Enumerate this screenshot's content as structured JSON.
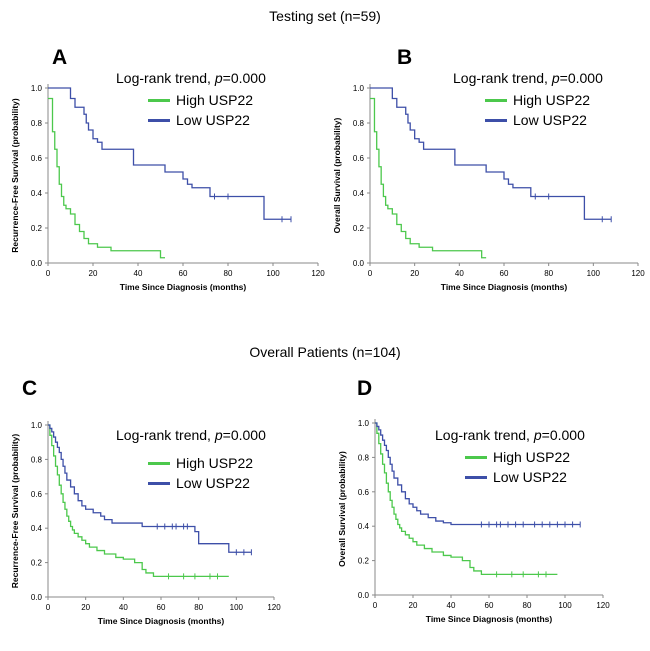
{
  "headers": {
    "testing": "Testing set (n=59)",
    "overall": "Overall Patients (n=104)"
  },
  "colors": {
    "high": "#4CC84C",
    "low": "#3D4FA8",
    "axis": "#888888"
  },
  "chart_data": [
    {
      "type": "line",
      "panel": "A",
      "legend_title": "Log-rank trend, ",
      "p_label": "p",
      "p_value": "=0.000",
      "xlabel": "Time Since Diagnosis (months)",
      "ylabel": "Recurrence-Free Survival (probability)",
      "xlim": [
        0,
        120
      ],
      "ylim": [
        0,
        1.0
      ],
      "xticks": [
        "0",
        "20",
        "40",
        "60",
        "80",
        "100",
        "120"
      ],
      "yticks": [
        "0.0",
        "0.2",
        "0.4",
        "0.6",
        "0.8",
        "1.0"
      ],
      "series": [
        {
          "name": "High USP22",
          "color_key": "high",
          "x": [
            0,
            2,
            3,
            4,
            5,
            6,
            7,
            8,
            10,
            12,
            14,
            16,
            18,
            22,
            28,
            36,
            46,
            50,
            52
          ],
          "y": [
            0.94,
            0.75,
            0.65,
            0.55,
            0.45,
            0.38,
            0.33,
            0.31,
            0.28,
            0.22,
            0.18,
            0.14,
            0.11,
            0.09,
            0.07,
            0.07,
            0.07,
            0.03,
            0.03
          ],
          "censored": []
        },
        {
          "name": "Low USP22",
          "color_key": "low",
          "x": [
            0,
            8,
            10,
            12,
            14,
            16,
            17,
            18,
            20,
            22,
            24,
            28,
            36,
            38,
            52,
            60,
            62,
            64,
            66,
            72,
            82,
            96,
            100,
            108
          ],
          "y": [
            1.0,
            1.0,
            0.94,
            0.89,
            0.89,
            0.85,
            0.8,
            0.76,
            0.71,
            0.69,
            0.65,
            0.65,
            0.65,
            0.56,
            0.52,
            0.48,
            0.45,
            0.43,
            0.43,
            0.38,
            0.38,
            0.25,
            0.25,
            0.25
          ],
          "censored": [
            [
              74,
              0.38
            ],
            [
              80,
              0.38
            ],
            [
              104,
              0.25
            ],
            [
              108,
              0.25
            ]
          ]
        }
      ]
    },
    {
      "type": "line",
      "panel": "B",
      "legend_title": "Log-rank trend, ",
      "p_label": "p",
      "p_value": "=0.000",
      "xlabel": "Time Since Diagnosis (months)",
      "ylabel": "Overall Survival (probability)",
      "xlim": [
        0,
        120
      ],
      "ylim": [
        0,
        1.0
      ],
      "xticks": [
        "0",
        "20",
        "40",
        "60",
        "80",
        "100",
        "120"
      ],
      "yticks": [
        "0.0",
        "0.2",
        "0.4",
        "0.6",
        "0.8",
        "1.0"
      ],
      "series": [
        {
          "name": "High USP22",
          "color_key": "high",
          "x": [
            0,
            2,
            3,
            4,
            5,
            6,
            7,
            8,
            10,
            12,
            14,
            16,
            18,
            22,
            28,
            36,
            46,
            50,
            52
          ],
          "y": [
            0.94,
            0.75,
            0.65,
            0.55,
            0.45,
            0.38,
            0.33,
            0.31,
            0.28,
            0.22,
            0.18,
            0.14,
            0.11,
            0.09,
            0.07,
            0.07,
            0.07,
            0.03,
            0.03
          ],
          "censored": []
        },
        {
          "name": "Low USP22",
          "color_key": "low",
          "x": [
            0,
            8,
            10,
            12,
            14,
            16,
            17,
            18,
            20,
            22,
            24,
            28,
            36,
            38,
            52,
            60,
            62,
            64,
            66,
            72,
            82,
            96,
            100,
            108
          ],
          "y": [
            1.0,
            1.0,
            0.94,
            0.89,
            0.89,
            0.85,
            0.8,
            0.76,
            0.71,
            0.69,
            0.65,
            0.65,
            0.65,
            0.56,
            0.52,
            0.48,
            0.45,
            0.43,
            0.43,
            0.38,
            0.38,
            0.25,
            0.25,
            0.25
          ],
          "censored": [
            [
              74,
              0.38
            ],
            [
              80,
              0.38
            ],
            [
              104,
              0.25
            ],
            [
              108,
              0.25
            ]
          ]
        }
      ]
    },
    {
      "type": "line",
      "panel": "C",
      "legend_title": "Log-rank trend, ",
      "p_label": "p",
      "p_value": "=0.000",
      "xlabel": "Time Since Diagnosis (months)",
      "ylabel": "Recurrence-Free Survival (probability)",
      "xlim": [
        0,
        120
      ],
      "ylim": [
        0,
        1.0
      ],
      "xticks": [
        "0",
        "20",
        "40",
        "60",
        "80",
        "100",
        "120"
      ],
      "yticks": [
        "0.0",
        "0.2",
        "0.4",
        "0.6",
        "0.8",
        "1.0"
      ],
      "series": [
        {
          "name": "High USP22",
          "color_key": "high",
          "x": [
            0,
            1,
            2,
            3,
            4,
            5,
            6,
            7,
            8,
            9,
            10,
            11,
            12,
            13,
            14,
            16,
            18,
            20,
            22,
            26,
            30,
            36,
            40,
            46,
            50,
            52,
            56,
            60,
            70,
            80,
            90,
            96
          ],
          "y": [
            1.0,
            0.94,
            0.88,
            0.82,
            0.76,
            0.71,
            0.65,
            0.6,
            0.55,
            0.51,
            0.47,
            0.44,
            0.41,
            0.39,
            0.37,
            0.35,
            0.33,
            0.31,
            0.29,
            0.27,
            0.25,
            0.23,
            0.22,
            0.2,
            0.16,
            0.14,
            0.12,
            0.12,
            0.12,
            0.12,
            0.12,
            0.12
          ],
          "censored": [
            [
              64,
              0.12
            ],
            [
              72,
              0.12
            ],
            [
              78,
              0.12
            ],
            [
              86,
              0.12
            ],
            [
              90,
              0.12
            ]
          ]
        },
        {
          "name": "Low USP22",
          "color_key": "low",
          "x": [
            0,
            1,
            2,
            3,
            4,
            5,
            6,
            7,
            8,
            9,
            10,
            12,
            14,
            16,
            18,
            20,
            24,
            28,
            30,
            34,
            40,
            50,
            56,
            64,
            70,
            76,
            78,
            80,
            84,
            90,
            96,
            100,
            108
          ],
          "y": [
            1.0,
            0.98,
            0.96,
            0.93,
            0.9,
            0.87,
            0.84,
            0.8,
            0.76,
            0.72,
            0.68,
            0.64,
            0.6,
            0.56,
            0.53,
            0.51,
            0.49,
            0.47,
            0.45,
            0.43,
            0.43,
            0.41,
            0.41,
            0.41,
            0.41,
            0.41,
            0.38,
            0.31,
            0.31,
            0.31,
            0.26,
            0.26,
            0.26
          ],
          "censored": [
            [
              58,
              0.41
            ],
            [
              62,
              0.41
            ],
            [
              66,
              0.41
            ],
            [
              68,
              0.41
            ],
            [
              72,
              0.41
            ],
            [
              74,
              0.41
            ],
            [
              100,
              0.26
            ],
            [
              104,
              0.26
            ],
            [
              108,
              0.26
            ]
          ]
        }
      ]
    },
    {
      "type": "line",
      "panel": "D",
      "legend_title": "Log-rank trend, ",
      "p_label": "p",
      "p_value": "=0.000",
      "xlabel": "Time Since Diagnosis (months)",
      "ylabel": "Overall Survival (probability)",
      "xlim": [
        0,
        120
      ],
      "ylim": [
        0,
        1.0
      ],
      "xticks": [
        "0",
        "20",
        "40",
        "60",
        "80",
        "100",
        "120"
      ],
      "yticks": [
        "0.0",
        "0.2",
        "0.4",
        "0.6",
        "0.8",
        "1.0"
      ],
      "series": [
        {
          "name": "High USP22",
          "color_key": "high",
          "x": [
            0,
            1,
            2,
            3,
            4,
            5,
            6,
            7,
            8,
            9,
            10,
            11,
            12,
            13,
            14,
            16,
            18,
            20,
            22,
            26,
            30,
            36,
            40,
            46,
            50,
            52,
            56,
            60,
            70,
            80,
            90,
            96
          ],
          "y": [
            1.0,
            0.94,
            0.88,
            0.82,
            0.76,
            0.71,
            0.65,
            0.6,
            0.55,
            0.51,
            0.47,
            0.44,
            0.41,
            0.39,
            0.37,
            0.35,
            0.33,
            0.31,
            0.29,
            0.27,
            0.25,
            0.23,
            0.22,
            0.2,
            0.16,
            0.14,
            0.12,
            0.12,
            0.12,
            0.12,
            0.12,
            0.12
          ],
          "censored": [
            [
              64,
              0.12
            ],
            [
              72,
              0.12
            ],
            [
              78,
              0.12
            ],
            [
              86,
              0.12
            ],
            [
              90,
              0.12
            ]
          ]
        },
        {
          "name": "Low USP22",
          "color_key": "low",
          "x": [
            0,
            1,
            2,
            3,
            4,
            5,
            6,
            7,
            8,
            9,
            10,
            12,
            14,
            16,
            18,
            20,
            22,
            24,
            28,
            32,
            36,
            40,
            50,
            60,
            70,
            80,
            90,
            100,
            108
          ],
          "y": [
            1.0,
            0.98,
            0.96,
            0.93,
            0.9,
            0.87,
            0.84,
            0.8,
            0.76,
            0.72,
            0.68,
            0.64,
            0.6,
            0.56,
            0.53,
            0.51,
            0.49,
            0.47,
            0.45,
            0.43,
            0.42,
            0.41,
            0.41,
            0.41,
            0.41,
            0.41,
            0.41,
            0.41,
            0.41
          ],
          "censored": [
            [
              56,
              0.41
            ],
            [
              60,
              0.41
            ],
            [
              64,
              0.41
            ],
            [
              66,
              0.41
            ],
            [
              70,
              0.41
            ],
            [
              74,
              0.41
            ],
            [
              78,
              0.41
            ],
            [
              84,
              0.41
            ],
            [
              88,
              0.41
            ],
            [
              92,
              0.41
            ],
            [
              96,
              0.41
            ],
            [
              100,
              0.41
            ],
            [
              104,
              0.41
            ],
            [
              108,
              0.41
            ]
          ]
        }
      ]
    }
  ]
}
